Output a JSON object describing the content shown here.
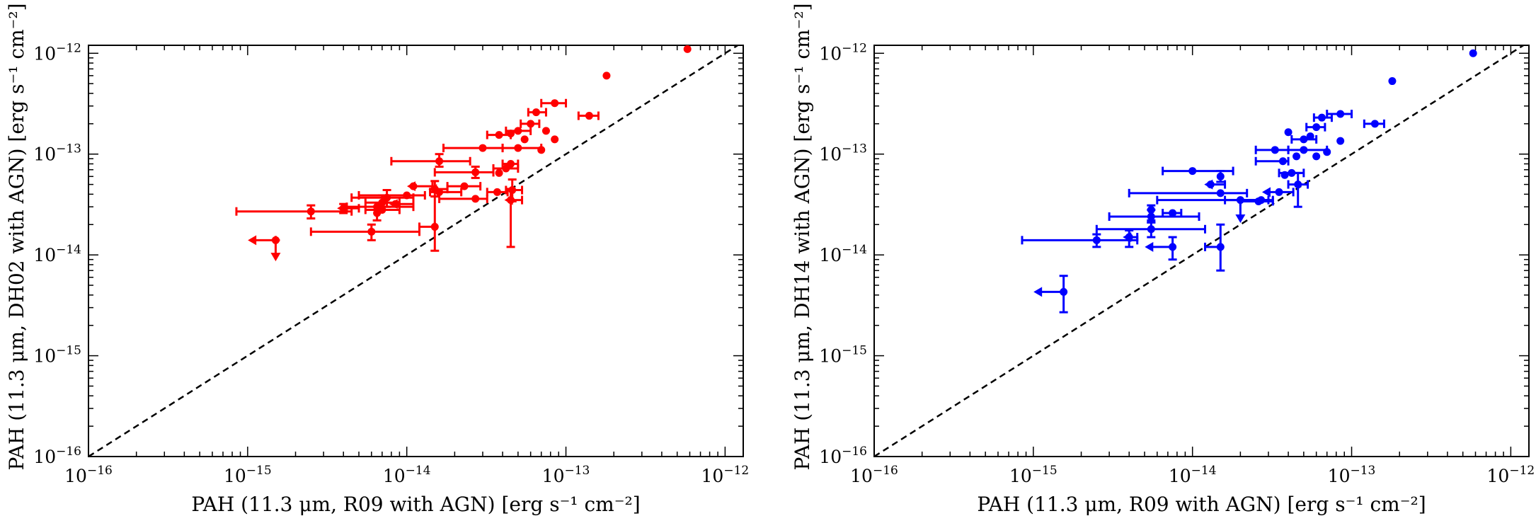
{
  "chart_data": [
    {
      "type": "scatter",
      "panel": "left",
      "color": "#ff0000",
      "xscale": "log",
      "yscale": "log",
      "xlim": [
        1e-16,
        1.3e-12
      ],
      "ylim": [
        1e-16,
        1.2e-12
      ],
      "xlabel": "PAH (11.3 μm,  R09 with AGN) [erg s⁻¹ cm⁻²]",
      "ylabel": "PAH (11.3 μm,  DH02 with AGN) [erg s⁻¹ cm⁻²]",
      "x_ticks": [
        {
          "value": 1e-16,
          "mantissa": "10",
          "exp": "−16"
        },
        {
          "value": 1e-15,
          "mantissa": "10",
          "exp": "−15"
        },
        {
          "value": 1e-14,
          "mantissa": "10",
          "exp": "−14"
        },
        {
          "value": 1e-13,
          "mantissa": "10",
          "exp": "−13"
        },
        {
          "value": 1e-12,
          "mantissa": "10",
          "exp": "−12"
        }
      ],
      "y_ticks": [
        {
          "value": 1e-16,
          "mantissa": "10",
          "exp": "−16"
        },
        {
          "value": 1e-15,
          "mantissa": "10",
          "exp": "−15"
        },
        {
          "value": 1e-14,
          "mantissa": "10",
          "exp": "−14"
        },
        {
          "value": 1e-13,
          "mantissa": "10",
          "exp": "−13"
        },
        {
          "value": 1e-12,
          "mantissa": "10",
          "exp": "−12"
        }
      ],
      "one_to_one_line": true,
      "points": [
        {
          "x": 5.8e-13,
          "y": 1.1e-12
        },
        {
          "x": 1.8e-13,
          "y": 6e-13
        },
        {
          "x": 1.4e-13,
          "y": 2.4e-13,
          "xerr": [
            1.2e-13,
            1.6e-13
          ]
        },
        {
          "x": 8.5e-14,
          "y": 3.2e-13,
          "xerr": [
            7e-14,
            1e-13
          ]
        },
        {
          "x": 6.5e-14,
          "y": 2.6e-13,
          "xerr": [
            5.8e-14,
            7.5e-14
          ]
        },
        {
          "x": 6e-14,
          "y": 2e-13,
          "xerr": [
            5.2e-14,
            6.8e-14
          ]
        },
        {
          "x": 5e-14,
          "y": 1.7e-13,
          "xerr": [
            4.2e-14,
            6e-14
          ]
        },
        {
          "x": 3.8e-14,
          "y": 1.55e-13,
          "xerr": [
            3.2e-14,
            4.5e-14
          ]
        },
        {
          "x": 4.5e-14,
          "y": 1.6e-13
        },
        {
          "x": 7.5e-14,
          "y": 1.7e-13
        },
        {
          "x": 5.5e-14,
          "y": 1.4e-13
        },
        {
          "x": 8.5e-14,
          "y": 1.4e-13
        },
        {
          "x": 3e-14,
          "y": 1.15e-13,
          "xerr": [
            1.7e-14,
            4e-14
          ]
        },
        {
          "x": 5e-14,
          "y": 1.15e-13,
          "xerr": [
            4e-14,
            7e-14
          ]
        },
        {
          "x": 7e-14,
          "y": 1.1e-13
        },
        {
          "x": 1.6e-14,
          "y": 8.5e-14,
          "xerr": [
            8e-15,
            2.5e-14
          ],
          "yerr": [
            7.5e-14,
            1e-13
          ]
        },
        {
          "x": 4.5e-14,
          "y": 8e-14,
          "xerr": [
            4e-14,
            5e-14
          ]
        },
        {
          "x": 4.2e-14,
          "y": 7.2e-14,
          "xerr": [
            3.5e-14,
            5e-14
          ]
        },
        {
          "x": 2.7e-14,
          "y": 6.6e-14,
          "xerr": [
            1.5e-14,
            3.5e-14
          ],
          "yerr": [
            5.8e-14,
            7.5e-14
          ]
        },
        {
          "x": 3.8e-14,
          "y": 6.5e-14
        },
        {
          "x": 2.3e-14,
          "y": 4.8e-14,
          "xerr": [
            1.8e-14,
            2.9e-14
          ]
        },
        {
          "x": 1.1e-14,
          "y": 4.8e-14,
          "xerr": [
            1.1e-14,
            1.45e-14
          ],
          "xupper": true
        },
        {
          "x": 1.5e-14,
          "y": 4.5e-14,
          "xerr": [
            1.5e-14,
            1.8e-14
          ],
          "xupper": true,
          "yerr": [
            3.8e-14,
            5.4e-14
          ]
        },
        {
          "x": 1.6e-14,
          "y": 4.2e-14,
          "xerr": [
            1.4e-14,
            2.2e-14
          ]
        },
        {
          "x": 3.7e-14,
          "y": 4.2e-14,
          "xerr": [
            3.2e-14,
            4.3e-14
          ]
        },
        {
          "x": 4.6e-14,
          "y": 4.4e-14,
          "xerr": [
            4.2e-14,
            5.3e-14
          ],
          "yerr": [
            3.4e-14,
            5.6e-14
          ]
        },
        {
          "x": 1e-14,
          "y": 3.9e-14,
          "xerr": [
            5e-15,
            1.3e-14
          ]
        },
        {
          "x": 7.5e-15,
          "y": 3.7e-14,
          "xerr": [
            4.5e-15,
            1.1e-14
          ],
          "yerr": [
            3e-14,
            4.4e-14
          ]
        },
        {
          "x": 2.7e-14,
          "y": 3.6e-14,
          "xerr": [
            1.6e-14,
            3.2e-14
          ]
        },
        {
          "x": 4.5e-14,
          "y": 3.5e-14,
          "xerr": [
            4.5e-14,
            5.3e-14
          ],
          "xupper": true,
          "yerr": [
            1.2e-14,
            4.5e-14
          ]
        },
        {
          "x": 7e-15,
          "y": 3.3e-14,
          "xerr": [
            5.5e-15,
            9e-15
          ],
          "yerr": [
            2.8e-14,
            3.9e-14
          ]
        },
        {
          "x": 8.5e-15,
          "y": 3.2e-14,
          "xerr": [
            8.5e-15,
            1.1e-14
          ],
          "xupper": true
        },
        {
          "x": 6.5e-15,
          "y": 3e-14,
          "xerr": [
            4.2e-15,
            1.1e-14
          ]
        },
        {
          "x": 4e-15,
          "y": 2.9e-14,
          "xerr": [
            4e-15,
            5e-15
          ],
          "xupper": true,
          "yerr": [
            2.6e-14,
            3.2e-14
          ]
        },
        {
          "x": 7e-15,
          "y": 2.8e-14,
          "xerr": [
            5.5e-15,
            9e-15
          ]
        },
        {
          "x": 2.5e-15,
          "y": 2.7e-14,
          "xerr": [
            8.5e-16,
            4.5e-15
          ],
          "yerr": [
            2.3e-14,
            3.1e-14
          ]
        },
        {
          "x": 6.5e-15,
          "y": 2.6e-14,
          "yerr": [
            2.2e-14,
            3e-14
          ]
        },
        {
          "x": 1.5e-14,
          "y": 1.9e-14,
          "xerr": [
            1.2e-14,
            1.5e-14
          ],
          "yerr": [
            1.1e-14,
            3.8e-14
          ]
        },
        {
          "x": 6e-15,
          "y": 1.7e-14,
          "xerr": [
            2.5e-15,
            1.2e-14
          ],
          "yerr": [
            1.4e-14,
            2e-14
          ]
        },
        {
          "x": 1.5e-15,
          "y": 1.4e-14,
          "xerr": [
            1.1e-15,
            1.5e-15
          ],
          "xupper": true,
          "yerr": [
            1e-14,
            1.4e-14
          ],
          "yupper": true
        }
      ]
    },
    {
      "type": "scatter",
      "panel": "right",
      "color": "#0000ff",
      "xscale": "log",
      "yscale": "log",
      "xlim": [
        1e-16,
        1.3e-12
      ],
      "ylim": [
        1e-16,
        1.2e-12
      ],
      "xlabel": "PAH (11.3 μm,  R09 with AGN) [erg s⁻¹ cm⁻²]",
      "ylabel": "PAH (11.3 μm,  DH14 with AGN) [erg s⁻¹ cm⁻²]",
      "x_ticks": [
        {
          "value": 1e-16,
          "mantissa": "10",
          "exp": "−16"
        },
        {
          "value": 1e-15,
          "mantissa": "10",
          "exp": "−15"
        },
        {
          "value": 1e-14,
          "mantissa": "10",
          "exp": "−14"
        },
        {
          "value": 1e-13,
          "mantissa": "10",
          "exp": "−13"
        },
        {
          "value": 1e-12,
          "mantissa": "10",
          "exp": "−12"
        }
      ],
      "y_ticks": [
        {
          "value": 1e-16,
          "mantissa": "10",
          "exp": "−16"
        },
        {
          "value": 1e-15,
          "mantissa": "10",
          "exp": "−15"
        },
        {
          "value": 1e-14,
          "mantissa": "10",
          "exp": "−14"
        },
        {
          "value": 1e-13,
          "mantissa": "10",
          "exp": "−13"
        },
        {
          "value": 1e-12,
          "mantissa": "10",
          "exp": "−12"
        }
      ],
      "one_to_one_line": true,
      "points": [
        {
          "x": 5.8e-13,
          "y": 1e-12
        },
        {
          "x": 1.8e-13,
          "y": 5.3e-13
        },
        {
          "x": 1.4e-13,
          "y": 2e-13,
          "xerr": [
            1.2e-13,
            1.6e-13
          ]
        },
        {
          "x": 8.5e-14,
          "y": 2.5e-13,
          "xerr": [
            7e-14,
            1e-13
          ]
        },
        {
          "x": 6.5e-14,
          "y": 2.3e-13,
          "xerr": [
            5.8e-14,
            7.5e-14
          ]
        },
        {
          "x": 6e-14,
          "y": 1.85e-13,
          "xerr": [
            5.2e-14,
            6.8e-14
          ]
        },
        {
          "x": 4e-14,
          "y": 1.65e-13
        },
        {
          "x": 5e-14,
          "y": 1.4e-13,
          "xerr": [
            4.2e-14,
            6e-14
          ]
        },
        {
          "x": 8.5e-14,
          "y": 1.35e-13
        },
        {
          "x": 5.5e-14,
          "y": 1.5e-13
        },
        {
          "x": 3.3e-14,
          "y": 1.1e-13,
          "xerr": [
            2.5e-14,
            4e-14
          ]
        },
        {
          "x": 5e-14,
          "y": 1.1e-13,
          "xerr": [
            4e-14,
            7e-14
          ]
        },
        {
          "x": 7e-14,
          "y": 1.05e-13
        },
        {
          "x": 6e-14,
          "y": 9.5e-14
        },
        {
          "x": 4.5e-14,
          "y": 9.5e-14
        },
        {
          "x": 3.7e-14,
          "y": 8.5e-14,
          "xerr": [
            2.5e-14,
            4e-14
          ]
        },
        {
          "x": 1e-14,
          "y": 6.8e-14,
          "xerr": [
            6.5e-15,
            1.8e-14
          ]
        },
        {
          "x": 4.2e-14,
          "y": 6.5e-14,
          "xerr": [
            3.5e-14,
            5e-14
          ]
        },
        {
          "x": 3.8e-14,
          "y": 6.2e-14
        },
        {
          "x": 1.5e-14,
          "y": 6e-14,
          "yerr": [
            5.3e-14,
            6.8e-14
          ]
        },
        {
          "x": 1.3e-14,
          "y": 5e-14,
          "xerr": [
            1.3e-14,
            1.6e-14
          ],
          "xupper": true
        },
        {
          "x": 4.6e-14,
          "y": 5e-14,
          "xerr": [
            4e-14,
            5.3e-14
          ],
          "yerr": [
            3e-14,
            6.5e-14
          ]
        },
        {
          "x": 1.5e-14,
          "y": 4.1e-14,
          "xerr": [
            4e-15,
            2.2e-14
          ]
        },
        {
          "x": 3.5e-14,
          "y": 4.2e-14,
          "xerr": [
            3e-14,
            4.3e-14
          ],
          "xupper": true
        },
        {
          "x": 2.7e-14,
          "y": 3.5e-14,
          "xerr": [
            1.6e-14,
            3.2e-14
          ]
        },
        {
          "x": 2e-14,
          "y": 3.5e-14,
          "xerr": [
            6e-15,
            3e-14
          ],
          "yerr": [
            2.4e-14,
            3.5e-14
          ],
          "yupper": true
        },
        {
          "x": 2.6e-14,
          "y": 3.4e-14,
          "xerr": [
            2e-14,
            3.2e-14
          ]
        },
        {
          "x": 5.5e-15,
          "y": 2.8e-14,
          "yerr": [
            2.2e-14,
            3.1e-14
          ]
        },
        {
          "x": 5.5e-15,
          "y": 2.4e-14,
          "xerr": [
            3e-15,
            1.1e-14
          ],
          "yerr": [
            2.1e-14,
            2.8e-14
          ]
        },
        {
          "x": 7.5e-15,
          "y": 2.6e-14,
          "xerr": [
            6.5e-15,
            8.5e-15
          ]
        },
        {
          "x": 5.5e-15,
          "y": 1.8e-14,
          "xerr": [
            2.5e-15,
            1.2e-14
          ],
          "yerr": [
            1.5e-14,
            2.1e-14
          ]
        },
        {
          "x": 4e-15,
          "y": 1.5e-14,
          "xerr": [
            4e-15,
            4.5e-15
          ],
          "xupper": true,
          "yerr": [
            1.2e-14,
            1.75e-14
          ]
        },
        {
          "x": 2.5e-15,
          "y": 1.4e-14,
          "xerr": [
            8.5e-16,
            4.5e-15
          ],
          "yerr": [
            1.2e-14,
            1.6e-14
          ]
        },
        {
          "x": 7.5e-15,
          "y": 1.2e-14,
          "xerr": [
            5.5e-15,
            7.5e-15
          ],
          "xupper": true,
          "yerr": [
            9e-15,
            1.5e-14
          ]
        },
        {
          "x": 1.5e-14,
          "y": 1.2e-14,
          "xerr": [
            1.2e-14,
            1.5e-14
          ],
          "yerr": [
            7e-15,
            2e-14
          ]
        },
        {
          "x": 1.55e-15,
          "y": 4.3e-15,
          "xerr": [
            1.1e-15,
            1.55e-15
          ],
          "xupper": true,
          "yerr": [
            2.7e-15,
            6.2e-15
          ]
        }
      ]
    }
  ]
}
